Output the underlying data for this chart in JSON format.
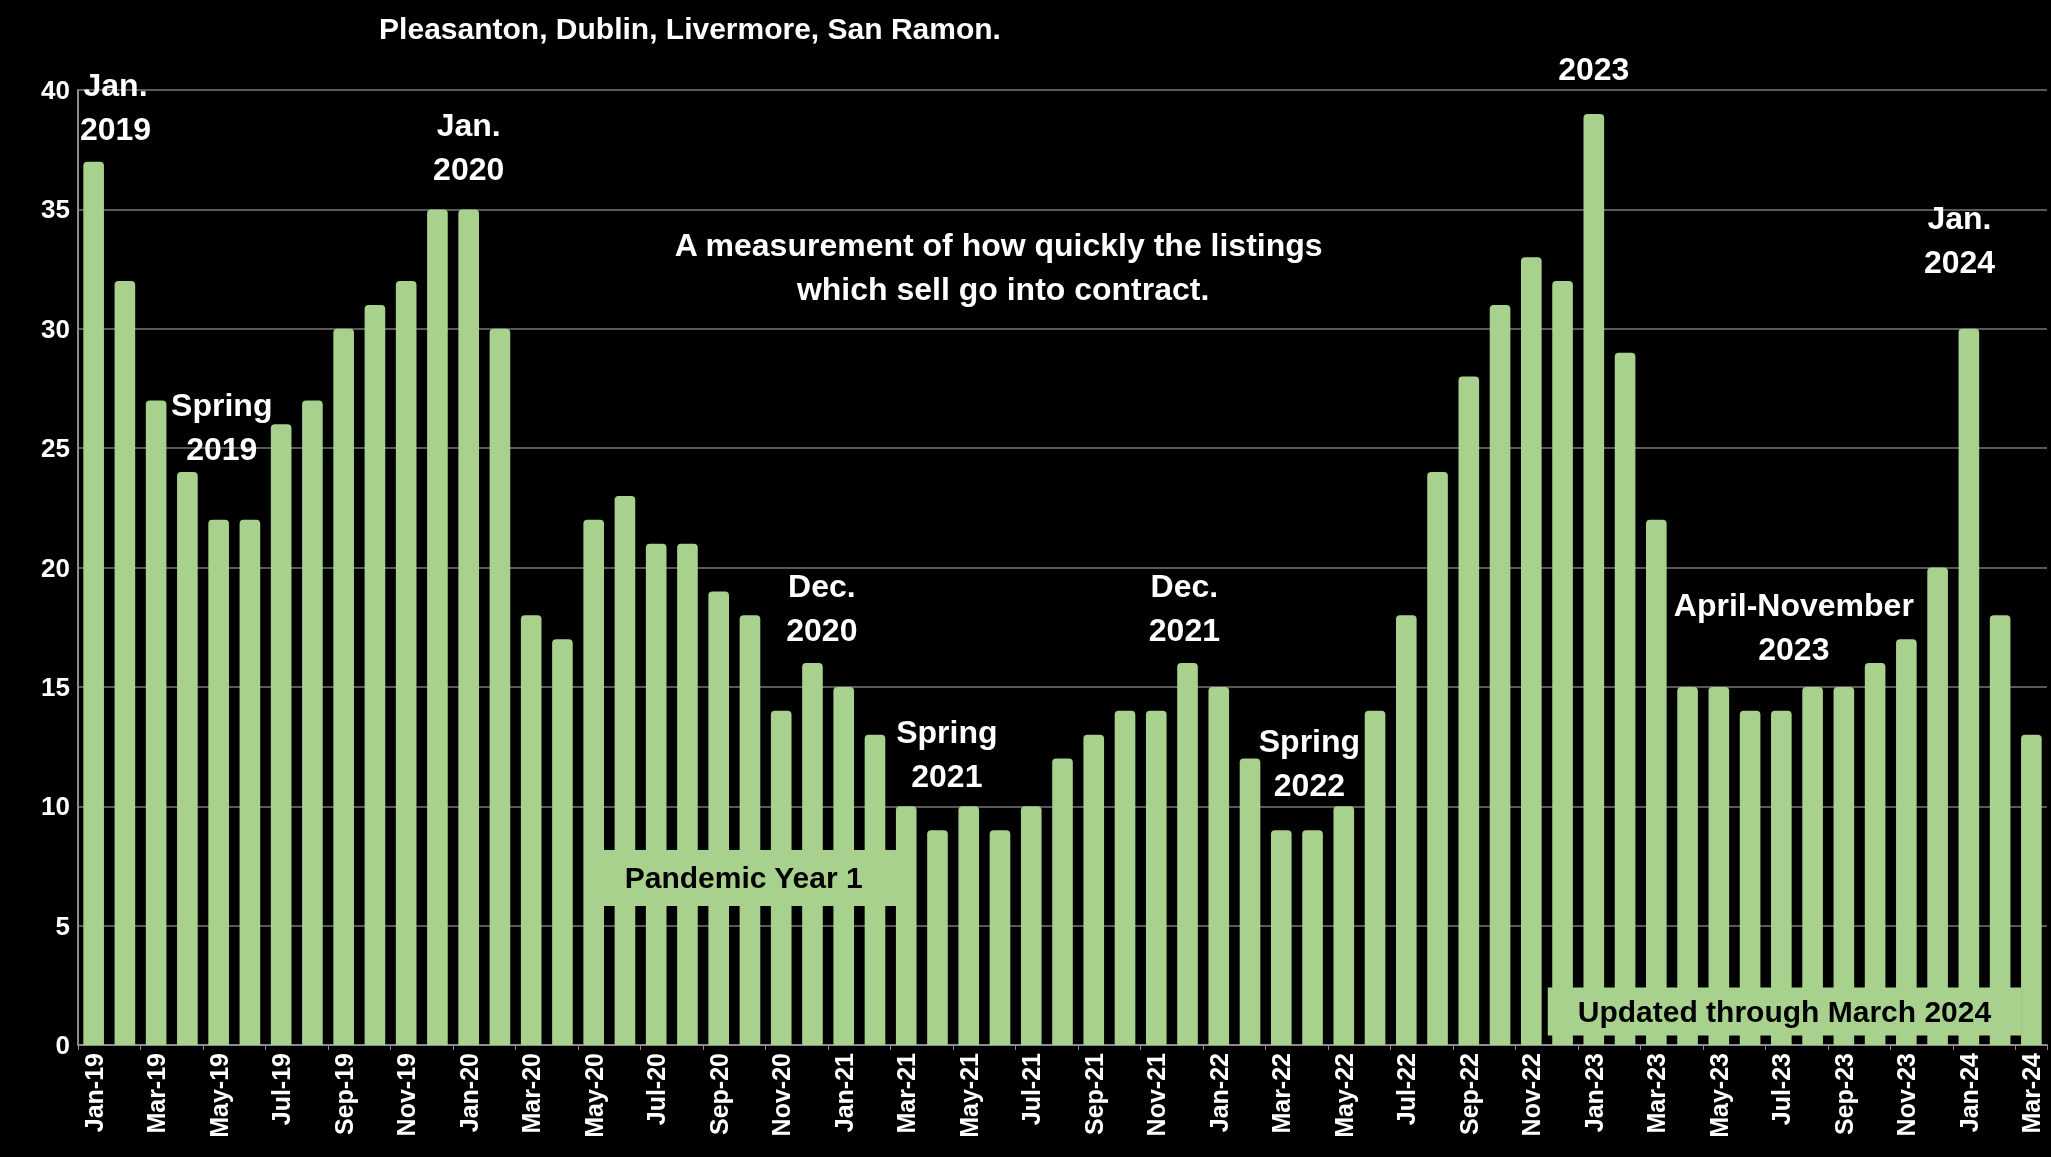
{
  "chart_data": {
    "type": "bar",
    "subtitle": "Pleasanton, Dublin, Livermore, San Ramon.",
    "categories": [
      "Jan-19",
      null,
      "Mar-19",
      null,
      "May-19",
      null,
      "Jul-19",
      null,
      "Sep-19",
      null,
      "Nov-19",
      null,
      "Jan-20",
      null,
      "Mar-20",
      null,
      "May-20",
      null,
      "Jul-20",
      null,
      "Sep-20",
      null,
      "Nov-20",
      null,
      "Jan-21",
      null,
      "Mar-21",
      null,
      "May-21",
      null,
      "Jul-21",
      null,
      "Sep-21",
      null,
      "Nov-21",
      null,
      "Jan-22",
      null,
      "Mar-22",
      null,
      "May-22",
      null,
      "Jul-22",
      null,
      "Sep-22",
      null,
      "Nov-22",
      null,
      "Jan-23",
      null,
      "Mar-23",
      null,
      "May-23",
      null,
      "Jul-23",
      null,
      "Sep-23",
      null,
      "Nov-23",
      null,
      "Jan-24",
      null,
      "Mar-24"
    ],
    "values": [
      37,
      32,
      27,
      24,
      22,
      22,
      26,
      27,
      30,
      31,
      32,
      35,
      35,
      30,
      18,
      17,
      22,
      23,
      21,
      21,
      19,
      18,
      14,
      16,
      15,
      13,
      10,
      9,
      10,
      9,
      10,
      12,
      13,
      14,
      14,
      16,
      15,
      12,
      9,
      9,
      10,
      14,
      18,
      24,
      28,
      31,
      33,
      32,
      39,
      29,
      22,
      15,
      15,
      14,
      14,
      15,
      15,
      16,
      17,
      20,
      30,
      18,
      13
    ],
    "color": "#a9d18e",
    "ylim": [
      0,
      40
    ],
    "yticks": [
      0,
      5,
      10,
      15,
      20,
      25,
      30,
      35,
      40
    ],
    "grid": "y",
    "annotations": [
      "Jan. 2019",
      "Jan. 2020",
      "Spring 2019",
      "Dec. 2020",
      "Spring 2021",
      "Dec. 2021",
      "Spring 2022",
      "2023",
      "Jan. 2024",
      "April-November 2023",
      "A measurement of how quickly the listings which sell go into contract.",
      "Pandemic Year 1",
      "Updated through March 2024"
    ]
  }
}
